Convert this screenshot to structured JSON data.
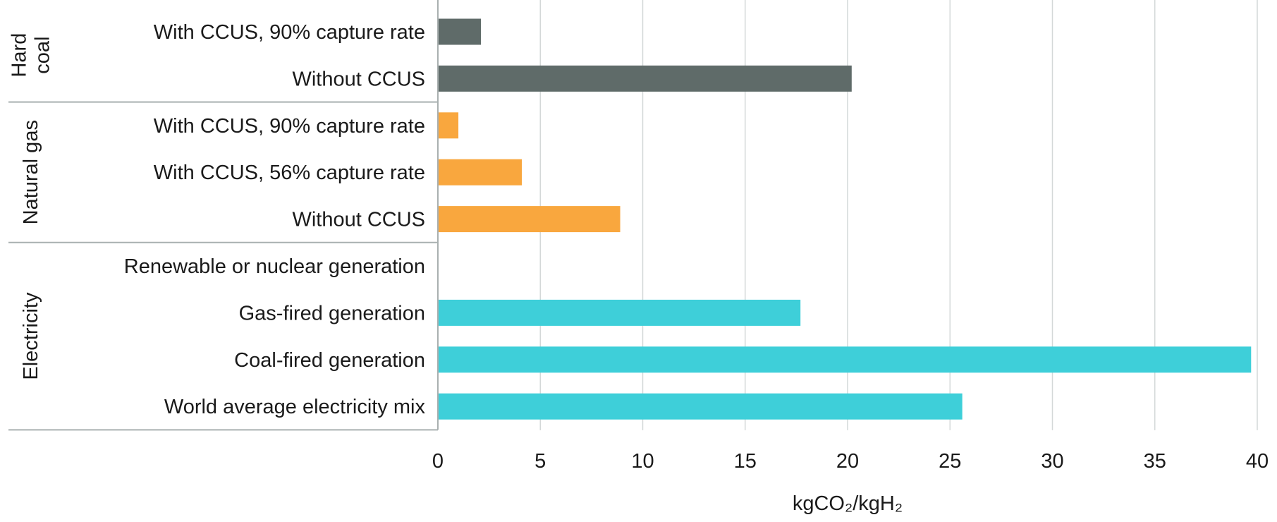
{
  "chart_data": {
    "type": "bar",
    "orientation": "horizontal",
    "groups": [
      {
        "name": "Hard coal",
        "name_lines": [
          "Hard",
          "coal"
        ],
        "color": "#5f6b69",
        "items": [
          {
            "label": "With CCUS, 90% capture rate",
            "value": 2.1
          },
          {
            "label": "Without CCUS",
            "value": 20.2
          }
        ]
      },
      {
        "name": "Natural gas",
        "name_lines": [
          "Natural gas"
        ],
        "color": "#f9a73e",
        "items": [
          {
            "label": "With CCUS, 90% capture rate",
            "value": 1.0
          },
          {
            "label": "With CCUS, 56% capture rate",
            "value": 4.1
          },
          {
            "label": "Without CCUS",
            "value": 8.9
          }
        ]
      },
      {
        "name": "Electricity",
        "name_lines": [
          "Electricity"
        ],
        "color": "#3ecfd9",
        "items": [
          {
            "label": "Renewable or nuclear generation",
            "value": 0
          },
          {
            "label": "Gas-fired generation",
            "value": 17.7
          },
          {
            "label": "Coal-fired generation",
            "value": 39.7
          },
          {
            "label": "World average electricity mix",
            "value": 25.6
          }
        ]
      }
    ],
    "xlim": [
      0,
      40
    ],
    "xticks": [
      0,
      5,
      10,
      15,
      20,
      25,
      30,
      35,
      40
    ],
    "xlabel": "kgCO₂/kgH₂",
    "grid": true
  }
}
